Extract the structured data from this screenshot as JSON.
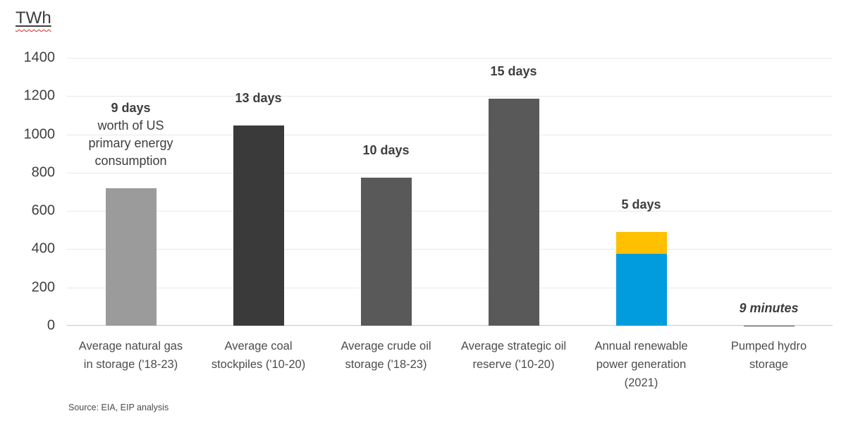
{
  "page": {
    "title": "TWh",
    "source_note": "Source: EIA, EIP analysis"
  },
  "chart_data": {
    "type": "bar",
    "title": "TWh",
    "ylabel": "TWh",
    "ylim": [
      0,
      1400
    ],
    "yticks": [
      0,
      200,
      400,
      600,
      800,
      1000,
      1200,
      1400
    ],
    "grid": true,
    "legend_position": "none",
    "categories": [
      "Average natural gas in storage ('18-23)",
      "Average coal stockpiles ('10-20)",
      "Average crude oil storage ('18-23)",
      "Average strategic oil reserve ('10-20)",
      "Annual renewable power generation (2021)",
      "Pumped hydro storage"
    ],
    "bars": [
      {
        "category": "Average natural gas in storage ('18-23)",
        "value": 720,
        "color": "#9b9b9b",
        "annotation_bold": "9 days",
        "annotation_rest": "worth of US primary energy consumption"
      },
      {
        "category": "Average coal stockpiles ('10-20)",
        "value": 1045,
        "color": "#3a3a3a",
        "annotation_bold": "13 days"
      },
      {
        "category": "Average crude oil storage ('18-23)",
        "value": 775,
        "color": "#595959",
        "annotation_bold": "10 days"
      },
      {
        "category": "Average strategic oil reserve ('10-20)",
        "value": 1185,
        "color": "#595959",
        "annotation_bold": "15 days"
      },
      {
        "category": "Annual renewable power generation (2021)",
        "segments": [
          {
            "value": 375,
            "color": "#009cde"
          },
          {
            "value": 115,
            "color": "#ffc000"
          }
        ],
        "annotation_bold": "5 days"
      },
      {
        "category": "Pumped hydro storage",
        "value": 0.5,
        "color": "#595959",
        "annotation_bold": "9 minutes",
        "annotation_italic": true
      }
    ],
    "colors": {
      "renewable_bottom_blue": "#009cde",
      "renewable_top_yellow": "#ffc000",
      "spellcheck_squiggle_red": "#e2261c",
      "gridline": "#e8e8e8",
      "axis_baseline": "#c6c6c6"
    }
  }
}
